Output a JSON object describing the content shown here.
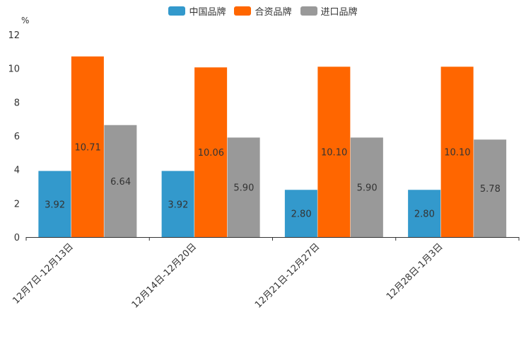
{
  "chart_data": {
    "type": "bar",
    "ylabel": "%",
    "ylim": [
      0,
      12
    ],
    "yticks": [
      "0",
      "2",
      "4",
      "6",
      "8",
      "10",
      "12"
    ],
    "categories": [
      "12月7日-12月13日",
      "12月14日-12月20日",
      "12月21日-12月27日",
      "12月28日-1月3日"
    ],
    "series": [
      {
        "name": "中国品牌",
        "color": "#3399cc",
        "values": [
          3.92,
          3.92,
          2.8,
          2.8
        ],
        "labels": [
          "3.92",
          "3.92",
          "2.80",
          "2.80"
        ]
      },
      {
        "name": "合资品牌",
        "color": "#ff6600",
        "values": [
          10.71,
          10.06,
          10.1,
          10.1
        ],
        "labels": [
          "10.71",
          "10.06",
          "10.10",
          "10.10"
        ]
      },
      {
        "name": "进口品牌",
        "color": "#999999",
        "values": [
          6.64,
          5.9,
          5.9,
          5.78
        ],
        "labels": [
          "6.64",
          "5.90",
          "5.90",
          "5.78"
        ]
      }
    ],
    "legend_position": "top-center"
  }
}
